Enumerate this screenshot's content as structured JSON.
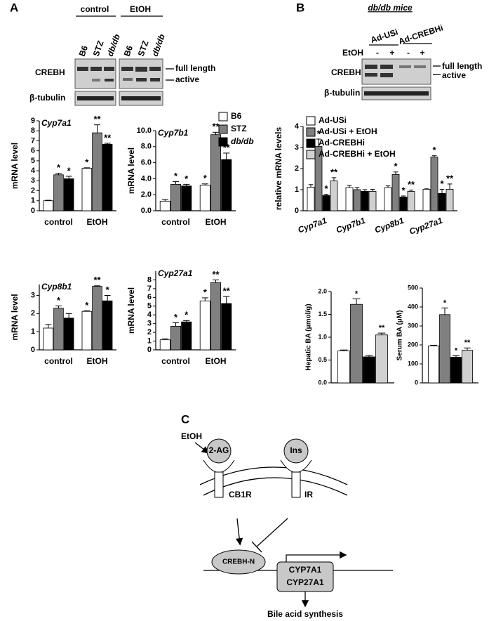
{
  "panel_labels": [
    "A",
    "B",
    "C"
  ],
  "blot_a": {
    "groups": [
      "control",
      "EtOH"
    ],
    "lanes": [
      "B6",
      "STZ",
      "db/db",
      "B6",
      "STZ",
      "db/db"
    ],
    "rows": [
      "CREBH",
      "β-tubulin"
    ],
    "band_labels": [
      "full length",
      "active"
    ]
  },
  "blot_b": {
    "title": "db/db mice",
    "groups": [
      "Ad-USi",
      "Ad-CREBHi"
    ],
    "treatment": "EtOH",
    "treatment_marks": [
      "-",
      "+",
      "-",
      "+"
    ],
    "rows": [
      "CREBH",
      "β-tubulin"
    ],
    "band_labels": [
      "full length",
      "active"
    ]
  },
  "chart_data": [
    {
      "type": "bar",
      "title": "Cyp7a1",
      "ylabel": "mRNA level",
      "categories": [
        "control",
        "EtOH"
      ],
      "ylim": [
        0,
        9
      ],
      "yticks": [
        0,
        1,
        2,
        3,
        4,
        5,
        6,
        7,
        8,
        9
      ],
      "series": [
        {
          "color": "#ffffff",
          "values": [
            1.0,
            4.25
          ],
          "errors": [
            0.05,
            0.05
          ],
          "annotations": [
            null,
            "*"
          ]
        },
        {
          "color": "#808080",
          "values": [
            3.6,
            7.8
          ],
          "errors": [
            0.15,
            0.8
          ],
          "annotations": [
            "*",
            "**"
          ]
        },
        {
          "color": "#000000",
          "values": [
            3.2,
            6.65
          ],
          "errors": [
            0.25,
            0.1
          ],
          "annotations": [
            "*",
            "**"
          ]
        }
      ]
    },
    {
      "type": "bar",
      "title": "Cyp7b1",
      "ylabel": "mRNA level",
      "categories": [
        "control",
        "EtOH"
      ],
      "ylim": [
        0,
        10
      ],
      "yticks": [
        {
          "value": 0,
          "label": "0.0"
        },
        {
          "value": 2,
          "label": "2.0"
        },
        {
          "value": 4,
          "label": "4.0"
        },
        {
          "value": 6,
          "label": "6.0"
        },
        {
          "value": 8,
          "label": "8.0"
        },
        {
          "value": 10,
          "label": "10.0"
        }
      ],
      "series": [
        {
          "name": "B6",
          "color": "#ffffff",
          "values": [
            1.2,
            3.2
          ],
          "errors": [
            0.2,
            0.15
          ],
          "annotations": [
            null,
            "*"
          ]
        },
        {
          "name": "STZ",
          "color": "#808080",
          "values": [
            3.3,
            9.5
          ],
          "errors": [
            0.35,
            0.3
          ],
          "annotations": [
            "*",
            "**"
          ]
        },
        {
          "name": "db/db",
          "color": "#000000",
          "values": [
            3.1,
            6.4
          ],
          "errors": [
            0.2,
            0.8
          ],
          "annotations": [
            "*",
            "**"
          ]
        }
      ]
    },
    {
      "type": "bar",
      "title": "Cyp8b1",
      "ylabel": "mRNA level",
      "categories": [
        "control",
        "EtOH"
      ],
      "ylim": [
        0,
        3.6
      ],
      "yticks": [
        0,
        1,
        2,
        3
      ],
      "series": [
        {
          "color": "#ffffff",
          "values": [
            1.2,
            2.12
          ],
          "errors": [
            0.2,
            0.03
          ],
          "annotations": [
            null,
            "*"
          ]
        },
        {
          "color": "#808080",
          "values": [
            2.3,
            3.5
          ],
          "errors": [
            0.12,
            0.03
          ],
          "annotations": [
            "*",
            "**"
          ]
        },
        {
          "color": "#000000",
          "values": [
            1.75,
            2.7
          ],
          "errors": [
            0.25,
            0.3
          ],
          "annotations": [
            null,
            "*"
          ]
        }
      ]
    },
    {
      "type": "bar",
      "title": "Cyp27a1",
      "ylabel": "mRNA level",
      "categories": [
        "control",
        "EtOH"
      ],
      "ylim": [
        0,
        9
      ],
      "yticks": [
        0,
        1,
        2,
        3,
        4,
        5,
        6,
        7,
        8
      ],
      "series": [
        {
          "color": "#ffffff",
          "values": [
            1.15,
            5.6
          ],
          "errors": [
            0.1,
            0.35
          ],
          "annotations": [
            null,
            "*"
          ]
        },
        {
          "color": "#808080",
          "values": [
            2.7,
            7.7
          ],
          "errors": [
            0.4,
            0.3
          ],
          "annotations": [
            "*",
            "**"
          ]
        },
        {
          "color": "#000000",
          "values": [
            3.2,
            5.3
          ],
          "errors": [
            0.15,
            0.8
          ],
          "annotations": [
            "*",
            "**"
          ]
        }
      ]
    },
    {
      "type": "bar",
      "ylabel": "relative mRNA levels",
      "categories": [
        "Cyp7a1",
        "Cyp7b1",
        "Cyp8b1",
        "Cyp27a1"
      ],
      "ylim": [
        0,
        4
      ],
      "yticks": [
        0,
        1,
        2,
        3,
        4
      ],
      "series": [
        {
          "name": "Ad-USi",
          "color": "#ffffff",
          "values": [
            1.12,
            1.1,
            1.1,
            1.02
          ],
          "errors": [
            0.12,
            0.1,
            0.08,
            0.02
          ],
          "annotations": [
            null,
            null,
            null,
            null
          ]
        },
        {
          "name": "Ad-USi + EtOH",
          "color": "#808080",
          "values": [
            3.05,
            1.0,
            1.72,
            2.55
          ],
          "errors": [
            0.35,
            0.1,
            0.12,
            0.06
          ],
          "annotations": [
            "*",
            null,
            "*",
            "*"
          ]
        },
        {
          "name": "Ad-CREBHi",
          "color": "#000000",
          "values": [
            0.72,
            0.92,
            0.65,
            0.82
          ],
          "errors": [
            0.06,
            0.08,
            0.05,
            0.2
          ],
          "annotations": [
            "*",
            null,
            "*",
            "*"
          ]
        },
        {
          "name": "Ad-CREBHi + EtOH",
          "color": "#d0d0d0",
          "values": [
            1.42,
            0.92,
            0.92,
            1.02
          ],
          "errors": [
            0.15,
            0.1,
            0.06,
            0.25
          ],
          "annotations": [
            "**",
            null,
            "**",
            "**"
          ]
        }
      ]
    },
    {
      "type": "bar",
      "ylabel": "Hepatic BA (μmol/g)",
      "ylim": [
        0,
        2
      ],
      "yticks": [
        {
          "value": 0,
          "label": "0.0"
        },
        {
          "value": 0.5,
          "label": "0.5"
        },
        {
          "value": 1,
          "label": "1.0"
        },
        {
          "value": 1.5,
          "label": "1.5"
        },
        {
          "value": 2,
          "label": "2.0"
        }
      ],
      "series": [
        {
          "color": "#ffffff",
          "values": [
            0.7
          ],
          "errors": [
            0.02
          ],
          "annotations": [
            null
          ]
        },
        {
          "color": "#808080",
          "values": [
            1.72
          ],
          "errors": [
            0.12
          ],
          "annotations": [
            "*"
          ]
        },
        {
          "color": "#000000",
          "values": [
            0.57
          ],
          "errors": [
            0.03
          ],
          "annotations": [
            null
          ]
        },
        {
          "color": "#d0d0d0",
          "values": [
            1.05
          ],
          "errors": [
            0.04
          ],
          "annotations": [
            "**"
          ]
        }
      ]
    },
    {
      "type": "bar",
      "ylabel": "Serum BA (μM)",
      "ylim": [
        0,
        500
      ],
      "yticks": [
        0,
        100,
        200,
        300,
        400,
        500
      ],
      "series": [
        {
          "color": "#ffffff",
          "values": [
            195
          ],
          "errors": [
            3
          ],
          "annotations": [
            null
          ]
        },
        {
          "color": "#808080",
          "values": [
            360
          ],
          "errors": [
            35
          ],
          "annotations": [
            "*"
          ]
        },
        {
          "color": "#000000",
          "values": [
            135
          ],
          "errors": [
            8
          ],
          "annotations": [
            "*"
          ]
        },
        {
          "color": "#d0d0d0",
          "values": [
            172
          ],
          "errors": [
            12
          ],
          "annotations": [
            "**"
          ]
        }
      ]
    }
  ],
  "diagram": {
    "stimulus": "EtOH",
    "ligands": [
      "2-AG",
      "Ins"
    ],
    "receptors": [
      "CB1R",
      "IR"
    ],
    "factor": "CREBH-N",
    "genes": [
      "CYP7A1",
      "CYP27A1"
    ],
    "outcome": "Bile acid synthesis"
  }
}
